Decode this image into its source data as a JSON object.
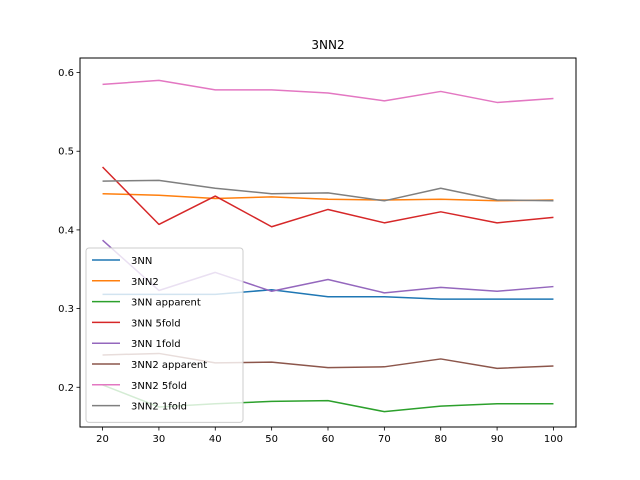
{
  "chart_data": {
    "type": "line",
    "title": "3NN2",
    "xlabel": "",
    "ylabel": "",
    "x": [
      20,
      30,
      40,
      50,
      60,
      70,
      80,
      90,
      100
    ],
    "xticks": [
      20,
      30,
      40,
      50,
      60,
      70,
      80,
      90,
      100
    ],
    "yticks": [
      0.2,
      0.3,
      0.4,
      0.5,
      0.6
    ],
    "ytick_labels": [
      "0.2",
      "0.3",
      "0.4",
      "0.5",
      "0.6"
    ],
    "xlim": [
      16,
      104
    ],
    "ylim": [
      0.1495,
      0.6185
    ],
    "grid": false,
    "legend_position": "lower-left",
    "series": [
      {
        "name": "3NN",
        "color": "#1f77b4",
        "values": [
          0.318,
          0.318,
          0.318,
          0.324,
          0.315,
          0.315,
          0.312,
          0.312,
          0.312
        ]
      },
      {
        "name": "3NN2",
        "color": "#ff7f0e",
        "values": [
          0.446,
          0.444,
          0.44,
          0.442,
          0.439,
          0.438,
          0.439,
          0.437,
          0.438
        ]
      },
      {
        "name": "3NN apparent",
        "color": "#2ca02c",
        "values": [
          0.203,
          0.175,
          0.179,
          0.182,
          0.183,
          0.169,
          0.176,
          0.179,
          0.179
        ]
      },
      {
        "name": "3NN 5fold",
        "color": "#d62728",
        "values": [
          0.48,
          0.407,
          0.443,
          0.404,
          0.426,
          0.409,
          0.423,
          0.409,
          0.416
        ]
      },
      {
        "name": "3NN 1fold",
        "color": "#9467bd",
        "values": [
          0.387,
          0.323,
          0.346,
          0.322,
          0.337,
          0.32,
          0.327,
          0.322,
          0.328
        ]
      },
      {
        "name": "3NN2 apparent",
        "color": "#8c564b",
        "values": [
          0.241,
          0.243,
          0.231,
          0.232,
          0.225,
          0.226,
          0.236,
          0.224,
          0.227
        ]
      },
      {
        "name": "3NN2 5fold",
        "color": "#e377c2",
        "values": [
          0.585,
          0.59,
          0.578,
          0.578,
          0.574,
          0.564,
          0.576,
          0.562,
          0.567
        ]
      },
      {
        "name": "3NN2 1fold",
        "color": "#7f7f7f",
        "values": [
          0.462,
          0.463,
          0.453,
          0.446,
          0.447,
          0.437,
          0.453,
          0.438,
          0.437
        ]
      }
    ]
  }
}
